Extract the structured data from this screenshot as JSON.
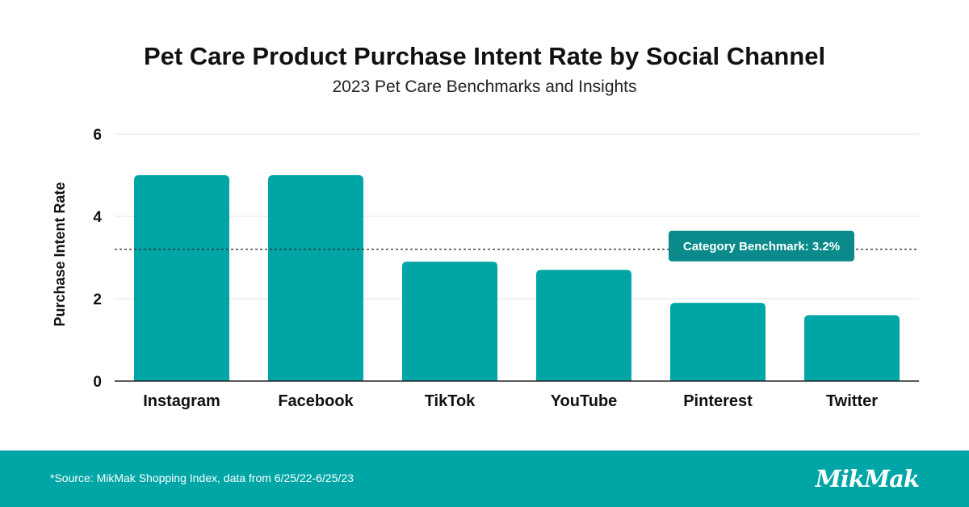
{
  "header": {
    "title": "Pet Care Product Purchase Intent Rate by Social Channel",
    "subtitle": "2023 Pet Care Benchmarks and Insights"
  },
  "chart_data": {
    "type": "bar",
    "categories": [
      "Instagram",
      "Facebook",
      "TikTok",
      "YouTube",
      "Pinterest",
      "Twitter"
    ],
    "values": [
      5.0,
      5.0,
      2.9,
      2.7,
      1.9,
      1.6
    ],
    "ylabel": "Purchase Intent Rate",
    "xlabel": "",
    "ylim": [
      0,
      6
    ],
    "yticks": [
      0,
      2,
      4,
      6
    ],
    "grid": true,
    "bar_color": "#00A6A6",
    "benchmark": {
      "value": 3.2,
      "label": "Category Benchmark: 3.2%",
      "color": "#0A8A8A"
    }
  },
  "footer": {
    "source": "*Source: MikMak Shopping Index, data from 6/25/22-6/25/23",
    "logo": "MikMak",
    "background": "#00A6A6"
  }
}
